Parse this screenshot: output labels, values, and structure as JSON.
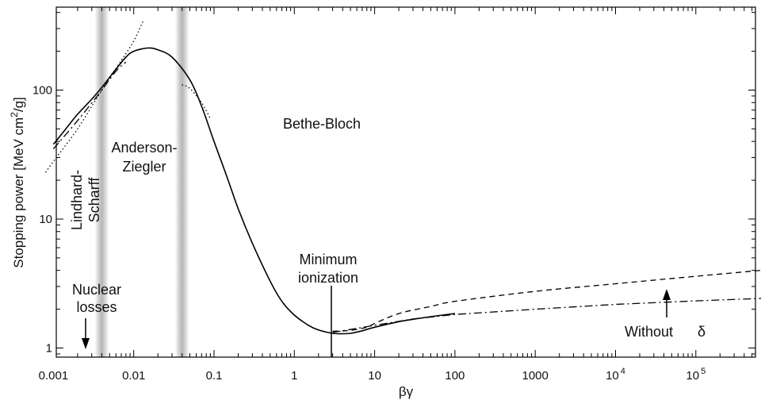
{
  "chart_data": {
    "type": "line",
    "title": "",
    "xlabel": "βγ",
    "ylabel_main": "Stopping power [MeV cm",
    "ylabel_sup": "2",
    "ylabel_tail": "/g]",
    "x_scale": "log",
    "y_scale": "log",
    "xlim": [
      0.0005,
      1000000
    ],
    "ylim": [
      0.85,
      400
    ],
    "x_ticks": [
      {
        "value": 0.001,
        "label": "0.001",
        "sup": ""
      },
      {
        "value": 0.01,
        "label": "0.01",
        "sup": ""
      },
      {
        "value": 0.1,
        "label": "0.1",
        "sup": ""
      },
      {
        "value": 1,
        "label": "1",
        "sup": ""
      },
      {
        "value": 10,
        "label": "10",
        "sup": ""
      },
      {
        "value": 100,
        "label": "100",
        "sup": ""
      },
      {
        "value": 1000,
        "label": "1000",
        "sup": ""
      },
      {
        "value": 10000,
        "label": "10",
        "sup": "4"
      },
      {
        "value": 100000,
        "label": "10",
        "sup": "5"
      },
      {
        "value": 1000000,
        "label": "10",
        "sup": ""
      }
    ],
    "y_ticks": [
      {
        "value": 1,
        "label": "1"
      },
      {
        "value": 10,
        "label": "10"
      },
      {
        "value": 100,
        "label": "100"
      }
    ],
    "shaded_bands": [
      0.004,
      0.04
    ],
    "series": [
      {
        "style": "solid",
        "points": [
          [
            0.001,
            38
          ],
          [
            0.0015,
            52
          ],
          [
            0.002,
            65
          ],
          [
            0.003,
            85
          ],
          [
            0.004,
            105
          ],
          [
            0.006,
            145
          ],
          [
            0.008,
            180
          ],
          [
            0.01,
            200
          ],
          [
            0.015,
            212
          ],
          [
            0.02,
            205
          ],
          [
            0.03,
            180
          ],
          [
            0.05,
            120
          ],
          [
            0.07,
            75
          ],
          [
            0.1,
            40
          ],
          [
            0.15,
            20
          ],
          [
            0.2,
            12
          ],
          [
            0.3,
            6.5
          ],
          [
            0.5,
            3.3
          ],
          [
            0.7,
            2.3
          ],
          [
            1,
            1.8
          ],
          [
            1.5,
            1.5
          ],
          [
            2,
            1.38
          ],
          [
            3,
            1.3
          ],
          [
            4,
            1.29
          ],
          [
            5,
            1.3
          ],
          [
            7,
            1.36
          ],
          [
            10,
            1.45
          ],
          [
            20,
            1.6
          ],
          [
            30,
            1.67
          ],
          [
            50,
            1.75
          ],
          [
            100,
            1.85
          ]
        ]
      },
      {
        "style": "dashed",
        "points": [
          [
            3,
            1.35
          ],
          [
            5,
            1.37
          ],
          [
            8,
            1.45
          ],
          [
            10,
            1.55
          ],
          [
            20,
            1.85
          ],
          [
            50,
            2.1
          ],
          [
            100,
            2.3
          ],
          [
            1000,
            2.75
          ],
          [
            10000,
            3.15
          ],
          [
            100000,
            3.6
          ],
          [
            1000000,
            4.1
          ]
        ]
      },
      {
        "style": "dash-dot",
        "points": [
          [
            0.001,
            35
          ],
          [
            0.002,
            58
          ],
          [
            0.004,
            100
          ],
          [
            0.006,
            140
          ],
          [
            0.008,
            165
          ],
          [
            3,
            1.32
          ],
          [
            10,
            1.5
          ],
          [
            30,
            1.68
          ],
          [
            100,
            1.82
          ],
          [
            1000,
            2.0
          ],
          [
            10000,
            2.18
          ],
          [
            100000,
            2.32
          ],
          [
            1000000,
            2.45
          ]
        ]
      },
      {
        "style": "dotted",
        "points": [
          [
            0.0008,
            23
          ],
          [
            0.001,
            28
          ],
          [
            0.002,
            50
          ],
          [
            0.004,
            100
          ],
          [
            0.007,
            170
          ],
          [
            0.01,
            240
          ],
          [
            0.013,
            340
          ],
          [
            0.04,
            110
          ],
          [
            0.05,
            103
          ],
          [
            0.07,
            80
          ],
          [
            0.09,
            60
          ]
        ]
      }
    ],
    "annotations": [
      {
        "id": "nuclear",
        "lines": [
          "Nuclear",
          "losses"
        ]
      },
      {
        "id": "lindhard",
        "lines": [
          "Lindhard-",
          "Scharff"
        ]
      },
      {
        "id": "anderson",
        "lines": [
          "Anderson-",
          "Ziegler"
        ]
      },
      {
        "id": "bethe",
        "lines": [
          "Bethe-Bloch"
        ]
      },
      {
        "id": "minimum",
        "lines": [
          "Minimum",
          "ionization"
        ]
      },
      {
        "id": "without",
        "lines": [
          "Without",
          "δ"
        ]
      }
    ],
    "grid": false,
    "legend": "none"
  }
}
